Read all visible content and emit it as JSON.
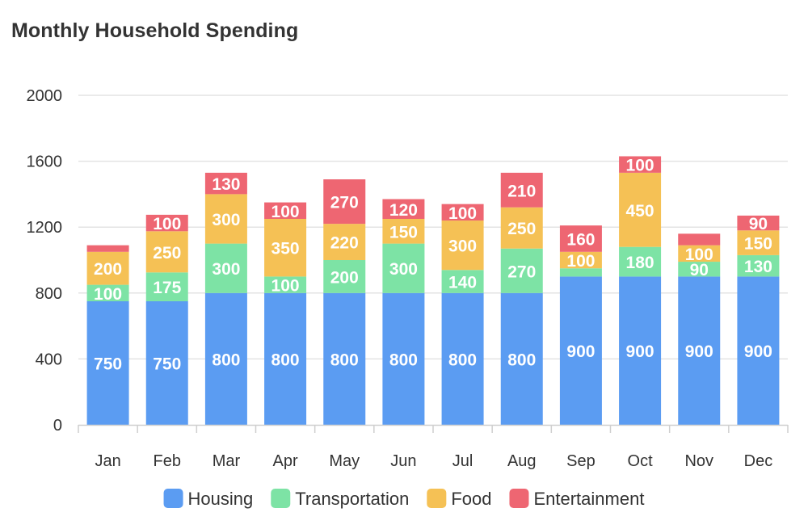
{
  "chart_data": {
    "type": "bar",
    "stacked": true,
    "title": "Monthly Household Spending",
    "categories": [
      "Jan",
      "Feb",
      "Mar",
      "Apr",
      "May",
      "Jun",
      "Jul",
      "Aug",
      "Sep",
      "Oct",
      "Nov",
      "Dec"
    ],
    "series": [
      {
        "name": "Housing",
        "color": "#5B9CF2",
        "values": [
          750,
          750,
          800,
          800,
          800,
          800,
          800,
          800,
          900,
          900,
          900,
          900
        ],
        "labels": [
          "750",
          "750",
          "800",
          "800",
          "800",
          "800",
          "800",
          "800",
          "900",
          "900",
          "900",
          "900"
        ]
      },
      {
        "name": "Transportation",
        "color": "#7DE3A5",
        "values": [
          100,
          175,
          300,
          100,
          200,
          300,
          140,
          270,
          50,
          180,
          90,
          130
        ],
        "labels": [
          "100",
          "175",
          "300",
          "100",
          "200",
          "300",
          "140",
          "270",
          "",
          "180",
          "90",
          "130"
        ]
      },
      {
        "name": "Food",
        "color": "#F5C155",
        "values": [
          200,
          250,
          300,
          350,
          220,
          150,
          300,
          250,
          100,
          450,
          100,
          150
        ],
        "labels": [
          "200",
          "250",
          "300",
          "350",
          "220",
          "150",
          "300",
          "250",
          "100",
          "450",
          "100",
          "150"
        ]
      },
      {
        "name": "Entertainment",
        "color": "#EE6672",
        "values": [
          40,
          100,
          130,
          100,
          270,
          120,
          100,
          210,
          160,
          100,
          70,
          90
        ],
        "labels": [
          "",
          "100",
          "130",
          "100",
          "270",
          "120",
          "100",
          "210",
          "160",
          "100",
          "",
          "90"
        ]
      }
    ],
    "yticks": [
      "0",
      "400",
      "800",
      "1200",
      "1600",
      "2000"
    ],
    "ylim": [
      0,
      2000
    ],
    "xlabel": "",
    "ylabel": "",
    "grid": true,
    "legend_position": "bottom-center"
  }
}
